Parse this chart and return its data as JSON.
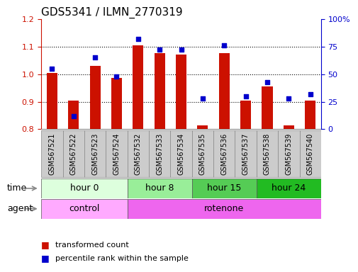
{
  "title": "GDS5341 / ILMN_2770319",
  "samples": [
    "GSM567521",
    "GSM567522",
    "GSM567523",
    "GSM567524",
    "GSM567532",
    "GSM567533",
    "GSM567534",
    "GSM567535",
    "GSM567536",
    "GSM567537",
    "GSM567538",
    "GSM567539",
    "GSM567540"
  ],
  "transformed_count": [
    1.005,
    0.905,
    1.03,
    0.985,
    1.105,
    1.075,
    1.072,
    0.815,
    1.075,
    0.905,
    0.955,
    0.815,
    0.905
  ],
  "percentile_rank": [
    55,
    12,
    65,
    48,
    82,
    72,
    72,
    28,
    76,
    30,
    43,
    28,
    32
  ],
  "ylim_left": [
    0.8,
    1.2
  ],
  "ylim_right": [
    0,
    100
  ],
  "yticks_left": [
    0.8,
    0.9,
    1.0,
    1.1,
    1.2
  ],
  "yticks_right": [
    0,
    25,
    50,
    75,
    100
  ],
  "yticklabels_right": [
    "0",
    "25",
    "50",
    "75",
    "100%"
  ],
  "bar_color": "#cc1100",
  "dot_color": "#0000cc",
  "bar_bottom": 0.8,
  "time_groups": [
    {
      "label": "hour 0",
      "start": 0,
      "end": 4,
      "color": "#ddffdd"
    },
    {
      "label": "hour 8",
      "start": 4,
      "end": 7,
      "color": "#99ee99"
    },
    {
      "label": "hour 15",
      "start": 7,
      "end": 10,
      "color": "#55cc55"
    },
    {
      "label": "hour 24",
      "start": 10,
      "end": 13,
      "color": "#22bb22"
    }
  ],
  "agent_groups": [
    {
      "label": "control",
      "start": 0,
      "end": 4,
      "color": "#ffaaff"
    },
    {
      "label": "rotenone",
      "start": 4,
      "end": 13,
      "color": "#ee66ee"
    }
  ],
  "legend_bar_label": "transformed count",
  "legend_dot_label": "percentile rank within the sample",
  "time_label": "time",
  "agent_label": "agent",
  "title_fontsize": 11,
  "tick_fontsize": 8,
  "sample_fontsize": 7,
  "axis_label_fontsize": 9,
  "group_label_fontsize": 9,
  "legend_fontsize": 8,
  "bar_width": 0.5,
  "dot_size": 20,
  "background_color": "#ffffff",
  "plot_bg_color": "#ffffff",
  "grid_color": "#000000",
  "left_axis_color": "#cc1100",
  "right_axis_color": "#0000cc",
  "sample_box_color": "#cccccc",
  "sample_box_edge": "#888888"
}
